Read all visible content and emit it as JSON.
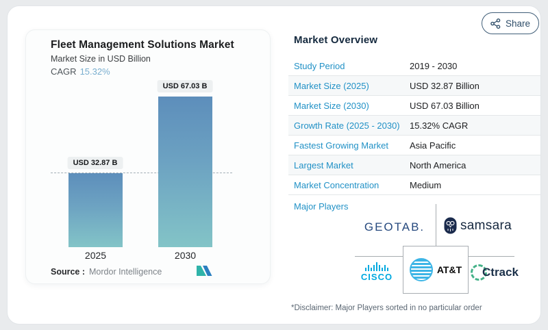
{
  "share": {
    "label": "Share"
  },
  "chart": {
    "title": "Fleet Management Solutions Market",
    "subtitle": "Market Size in USD Billion",
    "cagr_label": "CAGR",
    "cagr_value": "15.32%",
    "source_label": "Source :",
    "source_value": "Mordor Intelligence",
    "bar_color_top": "#5d8ebb",
    "bar_color_bottom": "#83c4c7"
  },
  "chart_data": {
    "type": "bar",
    "title": "Fleet Management Solutions Market",
    "subtitle": "Market Size in USD Billion",
    "categories": [
      "2025",
      "2030"
    ],
    "values": [
      32.87,
      67.03
    ],
    "value_labels": [
      "USD 32.87 B",
      "USD 67.03 B"
    ],
    "xlabel": "",
    "ylabel": "Market Size (USD Billion)",
    "ylim": [
      0,
      67.03
    ],
    "grid": false,
    "annotations": [
      "dashed reference line at 32.87"
    ],
    "cagr_percent": 15.32
  },
  "overview": {
    "heading": "Market Overview",
    "rows": [
      {
        "label": "Study Period",
        "value": "2019 - 2030"
      },
      {
        "label": "Market Size (2025)",
        "value": "USD 32.87 Billion"
      },
      {
        "label": "Market Size (2030)",
        "value": "USD 67.03 Billion"
      },
      {
        "label": "Growth Rate (2025 - 2030)",
        "value": "15.32% CAGR"
      },
      {
        "label": "Fastest Growing Market",
        "value": "Asia Pacific"
      },
      {
        "label": "Largest Market",
        "value": "North America"
      },
      {
        "label": "Market Concentration",
        "value": "Medium"
      }
    ],
    "major_players_label": "Major Players",
    "players": {
      "geotab": "GEOTAB.",
      "samsara": "samsara",
      "cisco": "CISCO",
      "att": "AT&T",
      "ctrack": "Ctrack"
    },
    "disclaimer": "*Disclaimer: Major Players sorted in no particular order"
  },
  "colors": {
    "accent_blue": "#2191c6",
    "cagr_blue": "#79aecf",
    "navy": "#14293e",
    "cisco_blue": "#00a9e0",
    "att_blue": "#3db5e6",
    "ctrack_green": "#45b289",
    "mordor_teal": "#2fb3a9",
    "mordor_blue": "#2b7fc0"
  }
}
